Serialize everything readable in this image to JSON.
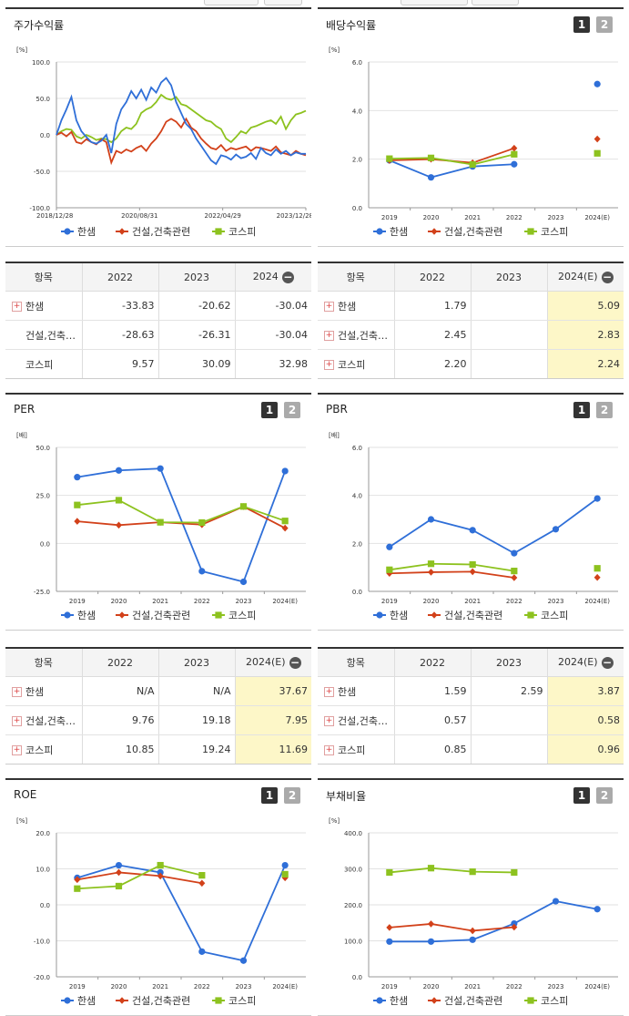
{
  "common_legend": [
    "한샘",
    "건설,건축관련",
    "코스피"
  ],
  "colors": {
    "hanssem": "#2f6fd8",
    "construction": "#d2411a",
    "kospi": "#8dc21f"
  },
  "panels": [
    {
      "id": "stock",
      "title": "주가수익률",
      "buttons": [],
      "chart_data": {
        "type": "line",
        "unit": "[%]",
        "yticks": [
          "100.0",
          "50.0",
          "0.0",
          "-50.0",
          "-100.0"
        ],
        "ylim": [
          -100,
          100
        ],
        "xtick_labels": [
          "2018/12/28",
          "2020/08/31",
          "2022/04/29",
          "2023/12/28"
        ],
        "xlim": [
          0,
          5
        ],
        "x": [
          0,
          0.1,
          0.2,
          0.3,
          0.4,
          0.5,
          0.6,
          0.7,
          0.8,
          0.9,
          1.0,
          1.1,
          1.2,
          1.3,
          1.4,
          1.5,
          1.6,
          1.7,
          1.8,
          1.9,
          2.0,
          2.1,
          2.2,
          2.3,
          2.4,
          2.5,
          2.6,
          2.7,
          2.8,
          2.9,
          3.0,
          3.1,
          3.2,
          3.3,
          3.4,
          3.5,
          3.6,
          3.7,
          3.8,
          3.9,
          4.0,
          4.1,
          4.2,
          4.3,
          4.4,
          4.5,
          4.6,
          4.7,
          4.8,
          4.9,
          5.0
        ],
        "series": [
          {
            "name": "한샘",
            "values": [
              0,
              20,
              35,
              52,
              20,
              5,
              -3,
              -10,
              -12,
              -8,
              0,
              -25,
              15,
              35,
              45,
              60,
              50,
              62,
              48,
              65,
              58,
              72,
              78,
              68,
              45,
              30,
              15,
              8,
              -5,
              -15,
              -25,
              -35,
              -40,
              -28,
              -30,
              -34,
              -27,
              -32,
              -30,
              -25,
              -33,
              -18,
              -25,
              -28,
              -20,
              -26,
              -22,
              -28,
              -24,
              -26,
              -26
            ]
          },
          {
            "name": "건설,건축관련",
            "values": [
              0,
              3,
              -2,
              4,
              -10,
              -12,
              -6,
              -10,
              -13,
              -6,
              -10,
              -38,
              -22,
              -25,
              -20,
              -23,
              -18,
              -15,
              -22,
              -12,
              -5,
              5,
              18,
              22,
              18,
              10,
              22,
              10,
              5,
              -5,
              -12,
              -18,
              -20,
              -14,
              -22,
              -18,
              -20,
              -18,
              -16,
              -22,
              -17,
              -18,
              -20,
              -22,
              -16,
              -24,
              -26,
              -28,
              -22,
              -26,
              -28
            ]
          },
          {
            "name": "코스피",
            "values": [
              0,
              5,
              8,
              7,
              -2,
              -5,
              0,
              -3,
              -7,
              -5,
              -6,
              -10,
              -5,
              5,
              10,
              8,
              15,
              30,
              35,
              38,
              45,
              55,
              50,
              48,
              52,
              42,
              40,
              35,
              30,
              25,
              20,
              18,
              12,
              8,
              -5,
              -10,
              -3,
              5,
              2,
              10,
              12,
              15,
              18,
              20,
              15,
              25,
              8,
              20,
              28,
              30,
              33
            ]
          }
        ]
      }
    },
    {
      "id": "dividend",
      "title": "배당수익률",
      "buttons": [
        "1",
        "2"
      ],
      "chart_data": {
        "type": "line",
        "unit": "[%]",
        "yticks": [
          "6.0",
          "4.0",
          "2.0",
          "0.0"
        ],
        "ylim": [
          0,
          6
        ],
        "categories": [
          "2019",
          "2020",
          "2021",
          "2022",
          "2023",
          "2024(E)"
        ],
        "series": [
          {
            "name": "한샘",
            "values": [
              1.95,
              1.25,
              1.7,
              1.79,
              null,
              5.09
            ]
          },
          {
            "name": "건설,건축관련",
            "values": [
              1.95,
              2.0,
              1.85,
              2.45,
              null,
              2.83
            ]
          },
          {
            "name": "코스피",
            "values": [
              2.02,
              2.05,
              1.78,
              2.2,
              null,
              2.24
            ]
          }
        ]
      }
    },
    {
      "id": "per",
      "title": "PER",
      "buttons": [
        "1",
        "2"
      ],
      "chart_data": {
        "type": "line",
        "unit": "[배]",
        "yticks": [
          "50.0",
          "25.0",
          "0.0",
          "-25.0"
        ],
        "ylim": [
          -25,
          50
        ],
        "categories": [
          "2019",
          "2020",
          "2021",
          "2022",
          "2023",
          "2024(E)"
        ],
        "series": [
          {
            "name": "한샘",
            "values": [
              34.5,
              38.0,
              39.0,
              -14.5,
              -20.0,
              37.67
            ]
          },
          {
            "name": "건설,건축관련",
            "values": [
              11.5,
              9.5,
              11.0,
              9.76,
              19.18,
              7.95
            ]
          },
          {
            "name": "코스피",
            "values": [
              20.0,
              22.5,
              11.0,
              10.85,
              19.24,
              11.69
            ]
          }
        ]
      }
    },
    {
      "id": "pbr",
      "title": "PBR",
      "buttons": [
        "1",
        "2"
      ],
      "chart_data": {
        "type": "line",
        "unit": "[배]",
        "yticks": [
          "6.0",
          "4.0",
          "2.0",
          "0.0"
        ],
        "ylim": [
          0,
          6
        ],
        "categories": [
          "2019",
          "2020",
          "2021",
          "2022",
          "2023",
          "2024(E)"
        ],
        "series": [
          {
            "name": "한샘",
            "values": [
              1.85,
              3.0,
              2.55,
              1.59,
              2.59,
              3.87
            ]
          },
          {
            "name": "건설,건축관련",
            "values": [
              0.75,
              0.8,
              0.82,
              0.57,
              null,
              0.58
            ]
          },
          {
            "name": "코스피",
            "values": [
              0.9,
              1.15,
              1.12,
              0.85,
              null,
              0.96
            ]
          }
        ]
      }
    },
    {
      "id": "roe",
      "title": "ROE",
      "buttons": [
        "1",
        "2"
      ],
      "chart_data": {
        "type": "line",
        "unit": "[%]",
        "yticks": [
          "20.0",
          "10.0",
          "0.0",
          "-10.0",
          "-20.0"
        ],
        "ylim": [
          -20,
          20
        ],
        "categories": [
          "2019",
          "2020",
          "2021",
          "2022",
          "2023",
          "2024(E)"
        ],
        "series": [
          {
            "name": "한샘",
            "values": [
              7.5,
              11.0,
              9.0,
              -13.0,
              -15.5,
              11.0
            ]
          },
          {
            "name": "건설,건축관련",
            "values": [
              7.0,
              9.0,
              8.0,
              6.0,
              null,
              7.5
            ]
          },
          {
            "name": "코스피",
            "values": [
              4.5,
              5.2,
              11.0,
              8.2,
              null,
              8.5
            ]
          }
        ]
      }
    },
    {
      "id": "debt",
      "title": "부채비율",
      "buttons": [
        "1",
        "2"
      ],
      "chart_data": {
        "type": "line",
        "unit": "[%]",
        "yticks": [
          "400.0",
          "300.0",
          "200.0",
          "100.0",
          "0.0"
        ],
        "ylim": [
          0,
          400
        ],
        "categories": [
          "2019",
          "2020",
          "2021",
          "2022",
          "2023",
          "2024(E)"
        ],
        "series": [
          {
            "name": "한샘",
            "values": [
              98,
              98,
              103,
              148,
              210,
              188
            ]
          },
          {
            "name": "건설,건축관련",
            "values": [
              137,
              147,
              128,
              138,
              null,
              null
            ]
          },
          {
            "name": "코스피",
            "values": [
              290,
              302,
              292,
              290,
              null,
              null
            ]
          }
        ]
      }
    }
  ],
  "tables": [
    {
      "id": "stock-table",
      "headers": [
        "항목",
        "2022",
        "2023",
        "2024"
      ],
      "highlight_col": null,
      "rows": [
        {
          "plus": true,
          "label": "한샘",
          "values": [
            "-33.83",
            "-20.62",
            "-30.04"
          ]
        },
        {
          "plus": false,
          "label": "건설,건축관련",
          "values": [
            "-28.63",
            "-26.31",
            "-30.04"
          ]
        },
        {
          "plus": false,
          "label": "코스피",
          "values": [
            "9.57",
            "30.09",
            "32.98"
          ]
        }
      ]
    },
    {
      "id": "dividend-table",
      "headers": [
        "항목",
        "2022",
        "2023",
        "2024(E)"
      ],
      "highlight_col": 3,
      "rows": [
        {
          "plus": true,
          "label": "한샘",
          "values": [
            "1.79",
            "",
            "5.09"
          ]
        },
        {
          "plus": true,
          "label": "건설,건축관련",
          "values": [
            "2.45",
            "",
            "2.83"
          ]
        },
        {
          "plus": true,
          "label": "코스피",
          "values": [
            "2.20",
            "",
            "2.24"
          ]
        }
      ]
    },
    {
      "id": "per-table",
      "headers": [
        "항목",
        "2022",
        "2023",
        "2024(E)"
      ],
      "highlight_col": 3,
      "rows": [
        {
          "plus": true,
          "label": "한샘",
          "values": [
            "N/A",
            "N/A",
            "37.67"
          ]
        },
        {
          "plus": true,
          "label": "건설,건축관련",
          "values": [
            "9.76",
            "19.18",
            "7.95"
          ]
        },
        {
          "plus": true,
          "label": "코스피",
          "values": [
            "10.85",
            "19.24",
            "11.69"
          ]
        }
      ]
    },
    {
      "id": "pbr-table",
      "headers": [
        "항목",
        "2022",
        "2023",
        "2024(E)"
      ],
      "highlight_col": 3,
      "rows": [
        {
          "plus": true,
          "label": "한샘",
          "values": [
            "1.59",
            "2.59",
            "3.87"
          ]
        },
        {
          "plus": true,
          "label": "건설,건축관련",
          "values": [
            "0.57",
            "",
            "0.58"
          ]
        },
        {
          "plus": true,
          "label": "코스피",
          "values": [
            "0.85",
            "",
            "0.96"
          ]
        }
      ]
    }
  ]
}
